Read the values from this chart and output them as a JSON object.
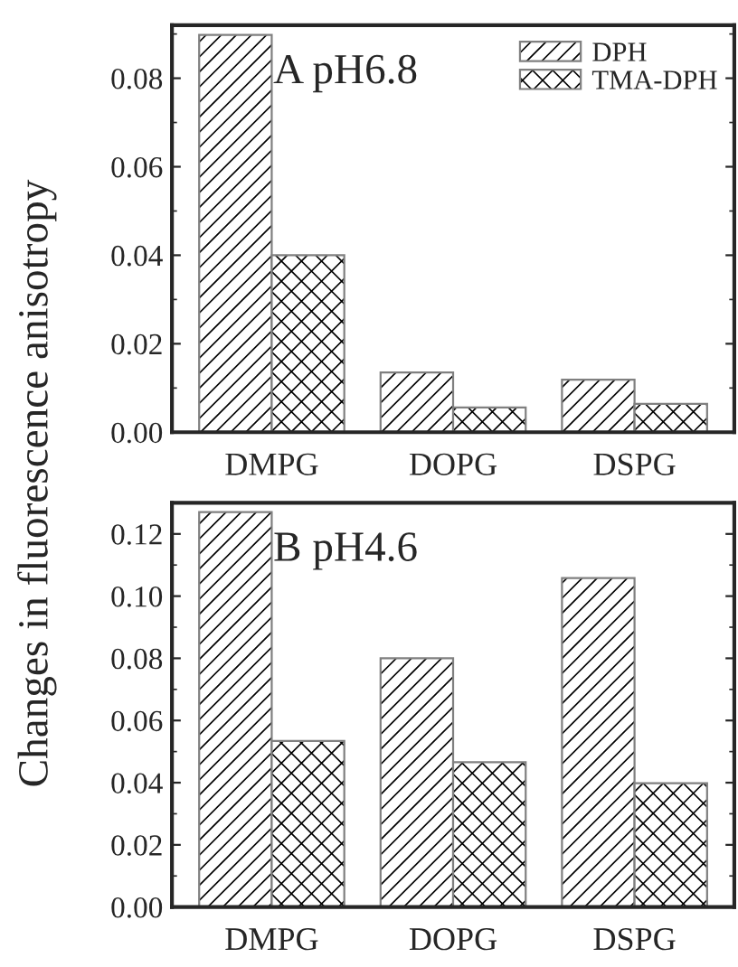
{
  "chart_data": [
    {
      "type": "bar",
      "ylabel": "Changes in fluorescence anisotropy",
      "annotations": [
        "A pH6.8"
      ],
      "categories": [
        "DMPG",
        "DOPG",
        "DSPG"
      ],
      "series": [
        {
          "name": "DPH",
          "color": "#808080",
          "values": [
            0.0898,
            0.0135,
            0.0119
          ]
        },
        {
          "name": "TMA-DPH",
          "color": "#808080",
          "values": [
            0.04,
            0.0056,
            0.0064
          ]
        }
      ],
      "ylim": [
        0,
        0.092
      ],
      "yticks": [
        {
          "value": 0,
          "label": "0.00"
        },
        {
          "value": 0.02,
          "label": "0.02"
        },
        {
          "value": 0.04,
          "label": "0.04"
        },
        {
          "value": 0.06,
          "label": "0.06"
        },
        {
          "value": 0.08,
          "label": "0.08"
        }
      ],
      "legend": "top right",
      "grid": false
    },
    {
      "type": "bar",
      "annotations": [
        "B pH4.6"
      ],
      "categories": [
        "DMPG",
        "DOPG",
        "DSPG"
      ],
      "series": [
        {
          "color": "#808080",
          "values": [
            0.127,
            0.08,
            0.1058
          ]
        },
        {
          "color": "#808080",
          "values": [
            0.0534,
            0.0466,
            0.0398
          ]
        }
      ],
      "ylim": [
        0,
        0.13
      ],
      "yticks": [
        {
          "value": 0,
          "label": "0.00"
        },
        {
          "value": 0.02,
          "label": "0.02"
        },
        {
          "value": 0.04,
          "label": "0.04"
        },
        {
          "value": 0.06,
          "label": "0.06"
        },
        {
          "value": 0.08,
          "label": "0.08"
        },
        {
          "value": 0.1,
          "label": "0.10"
        },
        {
          "value": 0.12,
          "label": "0.12"
        }
      ],
      "grid": false
    }
  ]
}
